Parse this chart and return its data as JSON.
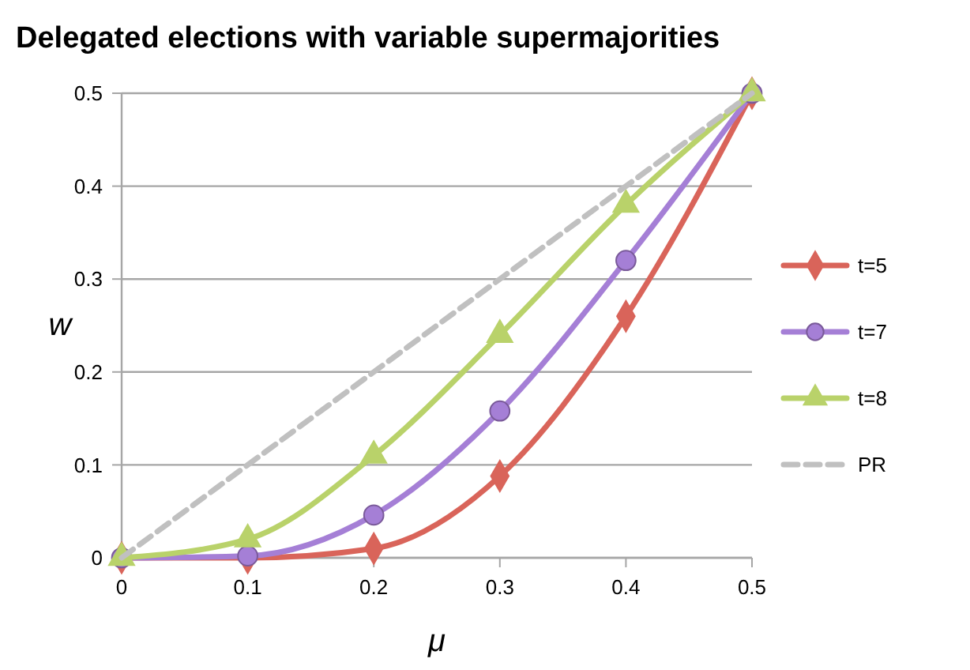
{
  "chart_data": {
    "type": "line",
    "title": "Delegated elections with variable supermajorities",
    "xlabel": "μ",
    "ylabel": "w",
    "x": [
      0,
      0.1,
      0.2,
      0.3,
      0.4,
      0.5
    ],
    "series": [
      {
        "name": "t=5",
        "color": "#d9645a",
        "marker": "diamond",
        "values": [
          0,
          0,
          0.01,
          0.088,
          0.26,
          0.5
        ]
      },
      {
        "name": "t=7",
        "color": "#a57fd6",
        "marker": "circle",
        "values": [
          0,
          0.002,
          0.046,
          0.158,
          0.32,
          0.5
        ]
      },
      {
        "name": "t=8",
        "color": "#b9d26a",
        "marker": "triangle",
        "values": [
          0,
          0.02,
          0.11,
          0.24,
          0.38,
          0.5
        ]
      },
      {
        "name": "PR",
        "color": "#c0c0c0",
        "marker": "none",
        "line_style": "dashed",
        "values": [
          0,
          0.1,
          0.2,
          0.3,
          0.4,
          0.5
        ]
      }
    ],
    "xlim": [
      0,
      0.5
    ],
    "xticks": [
      0,
      0.1,
      0.2,
      0.3,
      0.4,
      0.5
    ],
    "ylim": [
      0,
      0.5
    ],
    "yticks": [
      0,
      0.1,
      0.2,
      0.3,
      0.4,
      0.5
    ],
    "grid": "y",
    "legend": "right"
  }
}
